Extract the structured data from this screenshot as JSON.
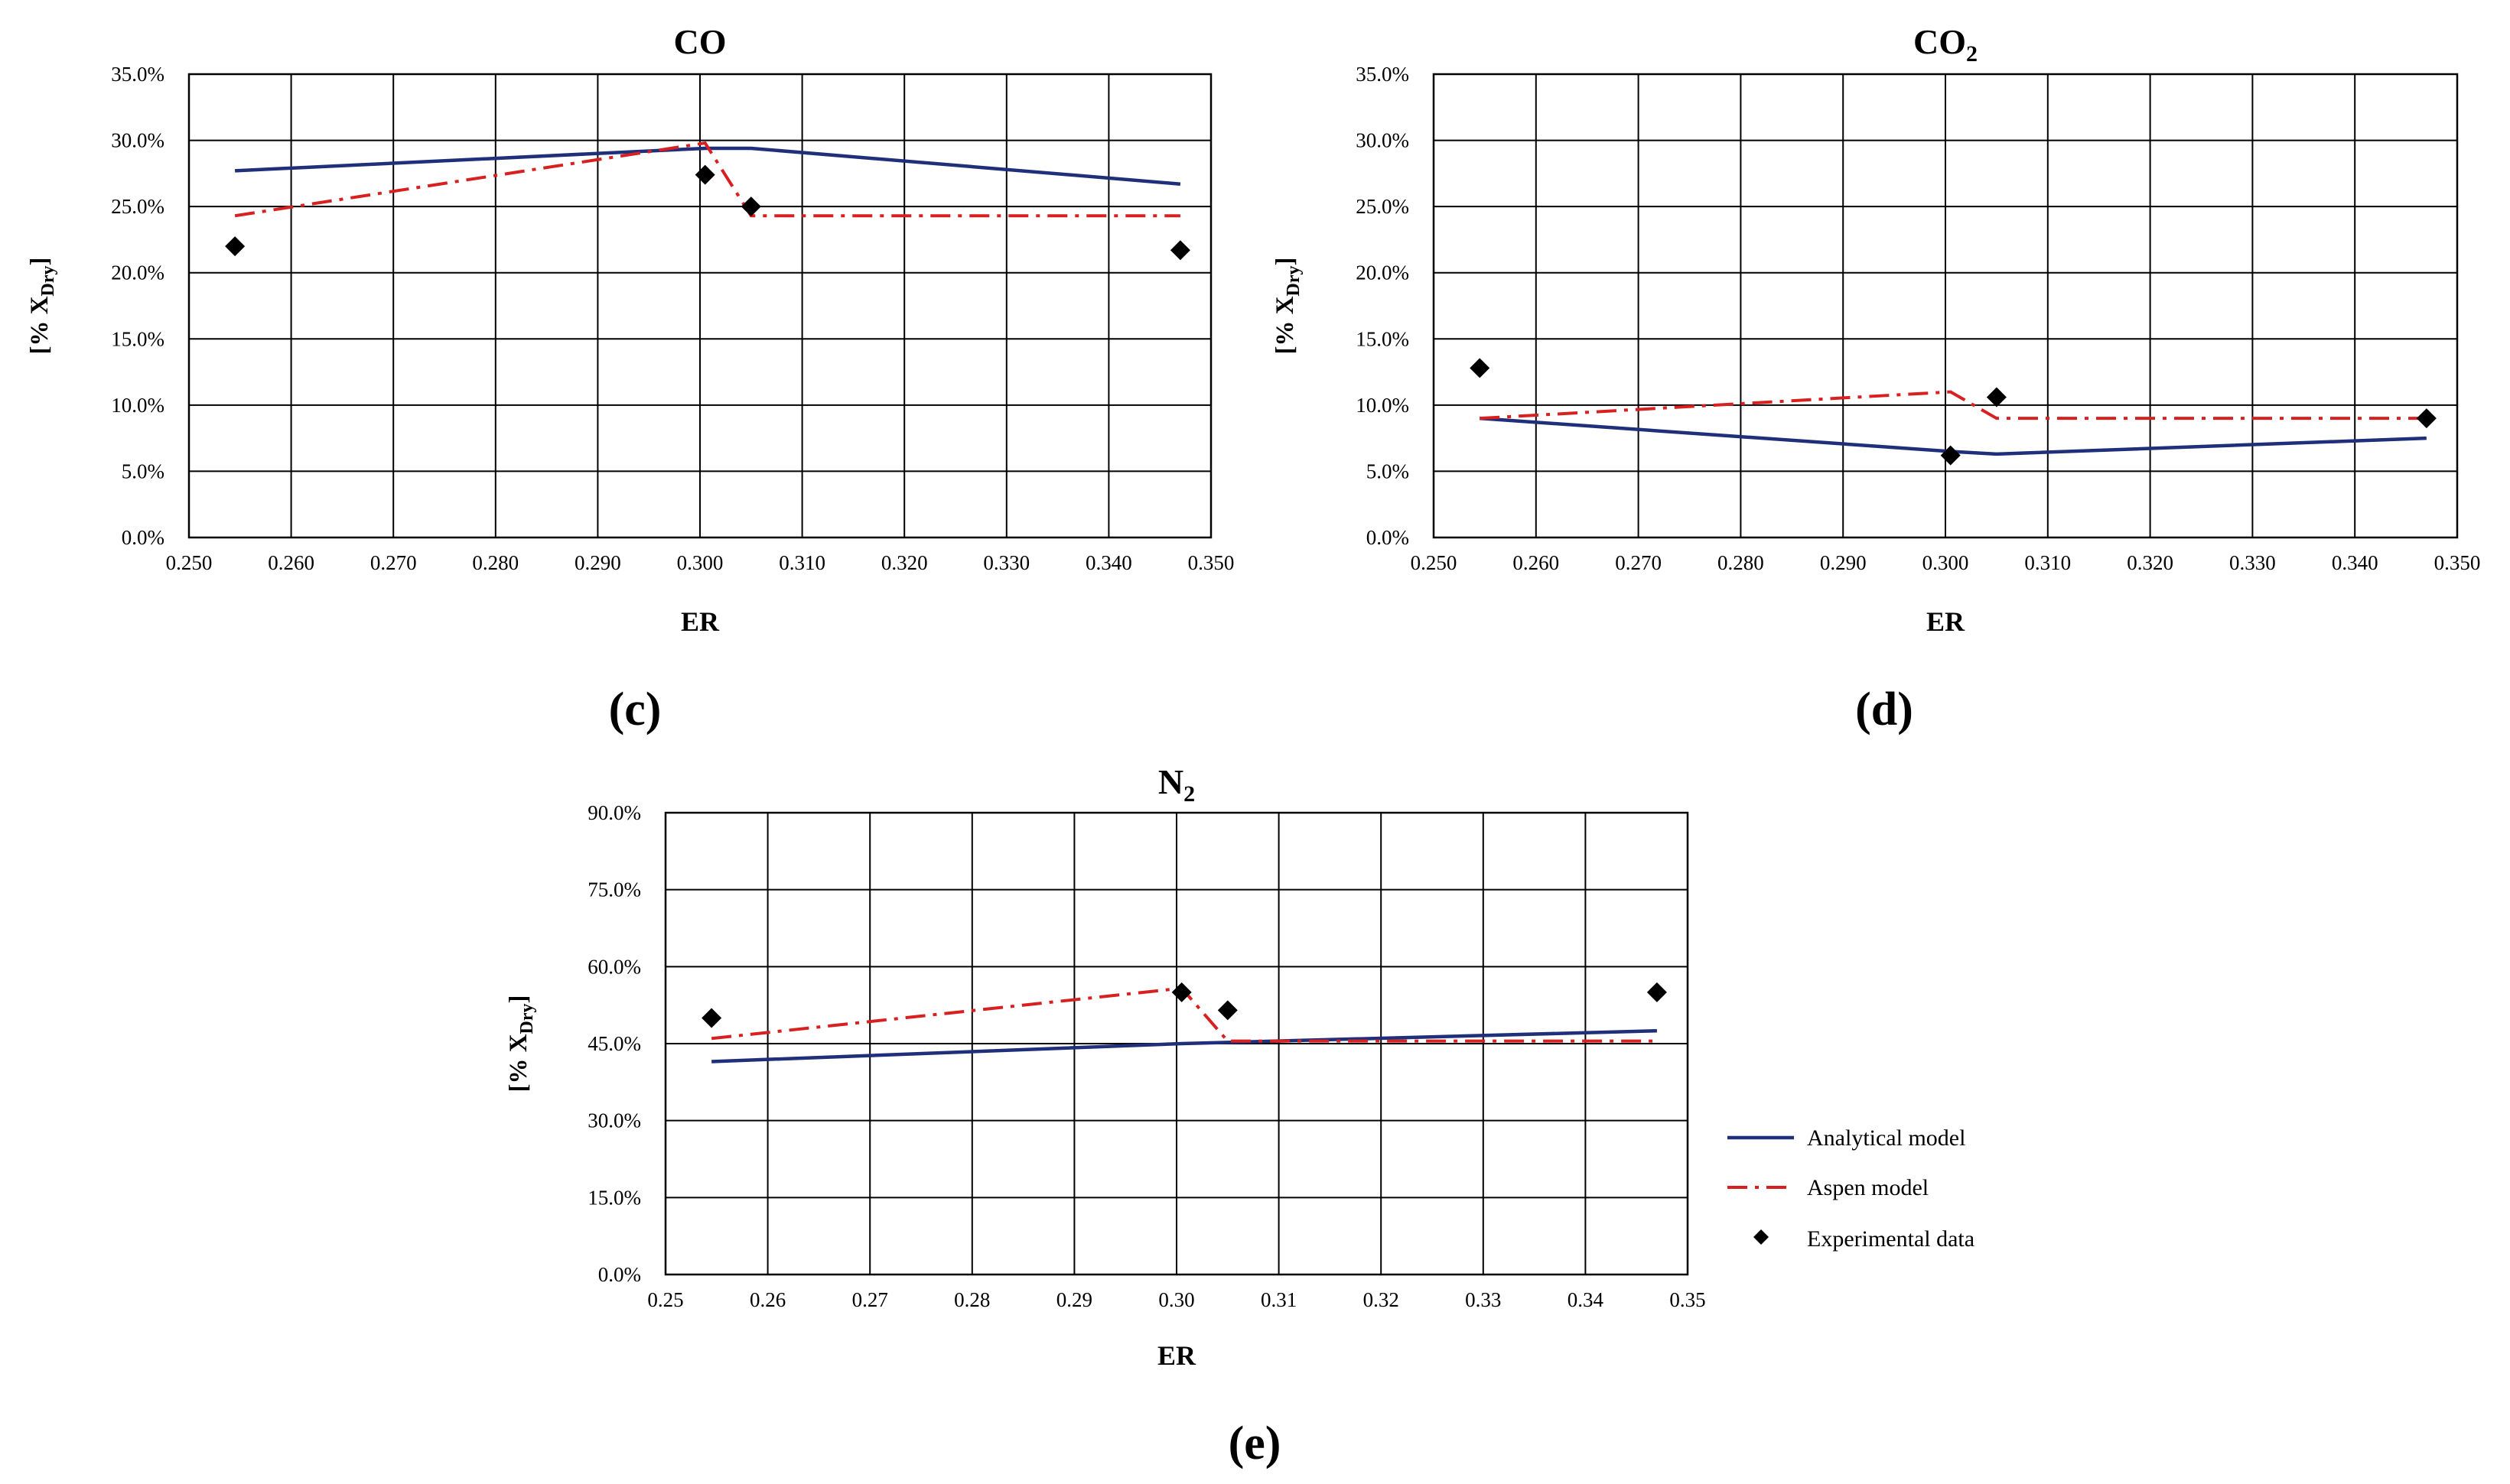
{
  "legend": {
    "analytical": "Analytical model",
    "aspen": "Aspen model",
    "experimental": "Experimental data"
  },
  "colors": {
    "analytical": "#1f2f7a",
    "aspen": "#d82020",
    "experimental": "#000000",
    "grid": "#000000"
  },
  "chart_data": [
    {
      "type": "line",
      "panel_label": "(c)",
      "title": "CO",
      "title_sub": "",
      "xlabel": "ER",
      "ylabel_main": "[% X",
      "ylabel_sub": "Dry",
      "ylabel_end": "]",
      "xlim": [
        0.25,
        0.35
      ],
      "ylim": [
        0,
        35
      ],
      "xticks": [
        0.25,
        0.26,
        0.27,
        0.28,
        0.29,
        0.3,
        0.31,
        0.32,
        0.33,
        0.34,
        0.35
      ],
      "xtick_labels": [
        "0.250",
        "0.260",
        "0.270",
        "0.280",
        "0.290",
        "0.300",
        "0.310",
        "0.320",
        "0.330",
        "0.340",
        "0.350"
      ],
      "yticks": [
        0,
        5,
        10,
        15,
        20,
        25,
        30,
        35
      ],
      "ytick_labels": [
        "0.0%",
        "5.0%",
        "10.0%",
        "15.0%",
        "20.0%",
        "25.0%",
        "30.0%",
        "35.0%"
      ],
      "series": [
        {
          "name": "Analytical model",
          "x": [
            0.2545,
            0.3005,
            0.305,
            0.347
          ],
          "y": [
            27.7,
            29.4,
            29.4,
            26.7
          ]
        },
        {
          "name": "Aspen model",
          "x": [
            0.2545,
            0.3005,
            0.305,
            0.347
          ],
          "y": [
            24.3,
            29.8,
            24.3,
            24.3
          ]
        },
        {
          "name": "Experimental data",
          "x": [
            0.2545,
            0.3005,
            0.305,
            0.347
          ],
          "y": [
            22.0,
            27.4,
            25.0,
            21.7
          ]
        }
      ]
    },
    {
      "type": "line",
      "panel_label": "(d)",
      "title": "CO",
      "title_sub": "2",
      "xlabel": "ER",
      "ylabel_main": "[% X",
      "ylabel_sub": "Dry",
      "ylabel_end": "]",
      "xlim": [
        0.25,
        0.35
      ],
      "ylim": [
        0,
        35
      ],
      "xticks": [
        0.25,
        0.26,
        0.27,
        0.28,
        0.29,
        0.3,
        0.31,
        0.32,
        0.33,
        0.34,
        0.35
      ],
      "xtick_labels": [
        "0.250",
        "0.260",
        "0.270",
        "0.280",
        "0.290",
        "0.300",
        "0.310",
        "0.320",
        "0.330",
        "0.340",
        "0.350"
      ],
      "yticks": [
        0,
        5,
        10,
        15,
        20,
        25,
        30,
        35
      ],
      "ytick_labels": [
        "0.0%",
        "5.0%",
        "10.0%",
        "15.0%",
        "20.0%",
        "25.0%",
        "30.0%",
        "35.0%"
      ],
      "series": [
        {
          "name": "Analytical model",
          "x": [
            0.2545,
            0.3005,
            0.305,
            0.347
          ],
          "y": [
            9.0,
            6.5,
            6.3,
            7.5
          ]
        },
        {
          "name": "Aspen model",
          "x": [
            0.2545,
            0.3005,
            0.305,
            0.347
          ],
          "y": [
            9.0,
            11.0,
            9.0,
            9.0
          ]
        },
        {
          "name": "Experimental data",
          "x": [
            0.2545,
            0.3005,
            0.305,
            0.347
          ],
          "y": [
            12.8,
            6.2,
            10.6,
            9.0
          ]
        }
      ]
    },
    {
      "type": "line",
      "panel_label": "(e)",
      "title": "N",
      "title_sub": "2",
      "xlabel": "ER",
      "ylabel_main": "[% X",
      "ylabel_sub": "Dry",
      "ylabel_end": "]",
      "xlim": [
        0.25,
        0.35
      ],
      "ylim": [
        0,
        90
      ],
      "xticks": [
        0.25,
        0.26,
        0.27,
        0.28,
        0.29,
        0.3,
        0.31,
        0.32,
        0.33,
        0.34,
        0.35
      ],
      "xtick_labels": [
        "0.25",
        "0.26",
        "0.27",
        "0.28",
        "0.29",
        "0.30",
        "0.31",
        "0.32",
        "0.33",
        "0.34",
        "0.35"
      ],
      "yticks": [
        0,
        15,
        30,
        45,
        60,
        75,
        90
      ],
      "ytick_labels": [
        "0.0%",
        "15.0%",
        "30.0%",
        "45.0%",
        "60.0%",
        "75.0%",
        "90.0%"
      ],
      "series": [
        {
          "name": "Analytical model",
          "x": [
            0.2545,
            0.3005,
            0.347
          ],
          "y": [
            41.5,
            45.0,
            47.5
          ]
        },
        {
          "name": "Aspen model",
          "x": [
            0.2545,
            0.3005,
            0.305,
            0.347
          ],
          "y": [
            46.0,
            55.8,
            45.5,
            45.5
          ]
        },
        {
          "name": "Experimental data",
          "x": [
            0.2545,
            0.3005,
            0.305,
            0.347
          ],
          "y": [
            50.0,
            55.0,
            51.5,
            55.0
          ]
        }
      ]
    }
  ]
}
